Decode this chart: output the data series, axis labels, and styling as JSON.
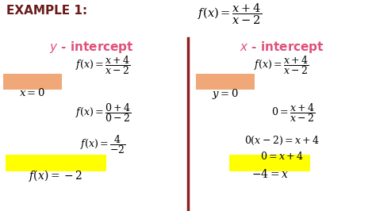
{
  "bg_color": "#ffffff",
  "example_label": "EXAMPLE 1:",
  "example_label_color": "#6b1a1a",
  "main_formula_color": "#000000",
  "y_intercept_color": "#e0507a",
  "x_intercept_color": "#e0507a",
  "divider_color": "#8b2020",
  "highlight_orange": "#f0a878",
  "highlight_yellow": "#ffff00",
  "text_color": "#000000",
  "fig_width": 4.74,
  "fig_height": 2.66,
  "fig_dpi": 100
}
